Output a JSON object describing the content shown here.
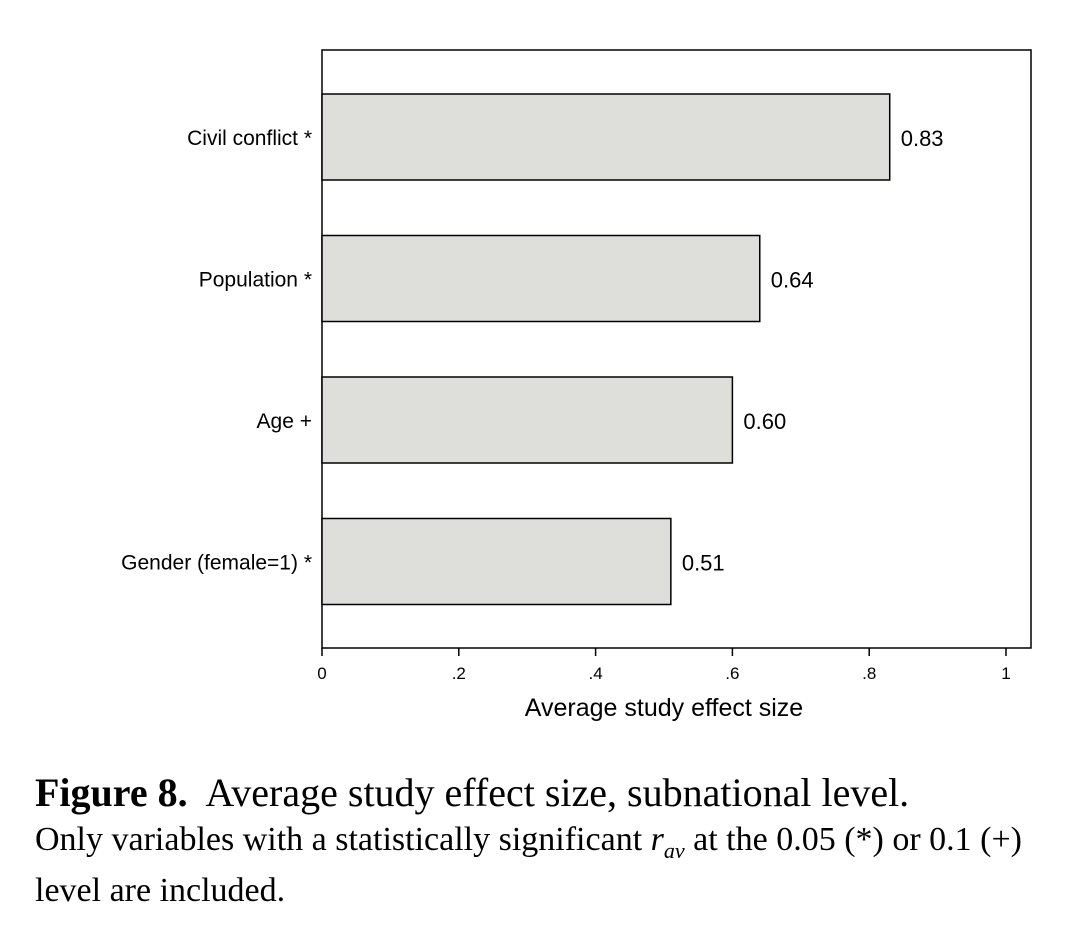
{
  "chart_data": {
    "type": "bar",
    "orientation": "horizontal",
    "categories": [
      "Civil conflict *",
      "Population *",
      "Age +",
      "Gender (female=1) *"
    ],
    "values": [
      0.83,
      0.64,
      0.6,
      0.51
    ],
    "value_labels": [
      "0.83",
      "0.64",
      "0.60",
      "0.51"
    ],
    "xlabel": "Average study effect size",
    "xlim": [
      0,
      1
    ],
    "x_ticks": [
      0,
      0.2,
      0.4,
      0.6,
      0.8,
      1
    ],
    "x_tick_labels": [
      "0",
      ".2",
      ".4",
      ".6",
      ".8",
      "1"
    ],
    "grid": false,
    "bar_fill": "#dededa",
    "bar_stroke": "#000000"
  },
  "caption": {
    "label": "Figure 8.",
    "title": "Average study effect size, subnational level.",
    "note_before": "Only variables with a statistically significant ",
    "note_symbol": "r",
    "note_subscript": "av",
    "note_after": " at the 0.05 (*) or 0.1 (+) level are included."
  }
}
